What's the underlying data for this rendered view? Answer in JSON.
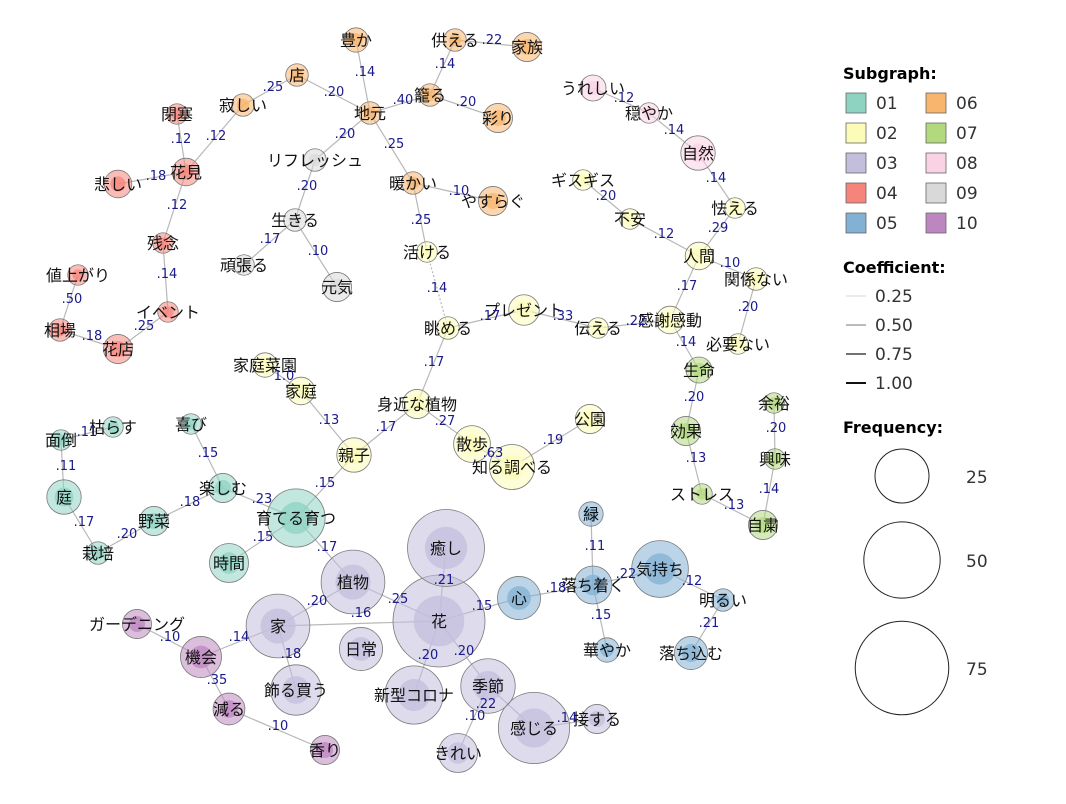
{
  "colors": {
    "01": "#8ed3c2",
    "02": "#fcfcb8",
    "03": "#c3bedc",
    "04": "#f5857b",
    "05": "#83b1d4",
    "06": "#f8b56d",
    "07": "#b3d97d",
    "08": "#f9d3e4",
    "09": "#d9d9d9",
    "10": "#bd86c0",
    "edge": "#b8b8b8",
    "coef_text": "#1a1a8c"
  },
  "legend": {
    "subgraph_title": "Subgraph:",
    "subgraphs": [
      "01",
      "02",
      "03",
      "04",
      "05",
      "06",
      "07",
      "08",
      "09",
      "10"
    ],
    "coefficient_title": "Coefficient:",
    "coefficients": [
      "0.25",
      "0.50",
      "0.75",
      "1.00"
    ],
    "frequency_title": "Frequency:",
    "frequencies": [
      "25",
      "50",
      "75"
    ]
  },
  "nodes": [
    {
      "id": "yutaka",
      "label": "豊か",
      "g": "06",
      "f": 7
    },
    {
      "id": "sonaeru",
      "label": "供える",
      "g": "06",
      "f": 6
    },
    {
      "id": "kazoku",
      "label": "家族",
      "g": "06",
      "f": 10
    },
    {
      "id": "mise",
      "label": "店",
      "g": "06",
      "f": 6
    },
    {
      "id": "komoru",
      "label": "籠る",
      "g": "06",
      "f": 6
    },
    {
      "id": "irodori",
      "label": "彩り",
      "g": "06",
      "f": 10
    },
    {
      "id": "jimoto",
      "label": "地元",
      "g": "06",
      "f": 6
    },
    {
      "id": "sabishii",
      "label": "寂しい",
      "g": "06",
      "f": 6
    },
    {
      "id": "atatakai",
      "label": "暖かい",
      "g": "06",
      "f": 6
    },
    {
      "id": "yasuragu",
      "label": "やすらぐ",
      "g": "06",
      "f": 10
    },
    {
      "id": "ureshii",
      "label": "うれしい",
      "g": "08",
      "f": 8
    },
    {
      "id": "odayaka",
      "label": "穏やか",
      "g": "08",
      "f": 5
    },
    {
      "id": "shizen",
      "label": "自然",
      "g": "08",
      "f": 14
    },
    {
      "id": "heisa",
      "label": "閉塞",
      "g": "04",
      "f": 5
    },
    {
      "id": "hanami",
      "label": "花見",
      "g": "04",
      "f": 9
    },
    {
      "id": "kanashii",
      "label": "悲しい",
      "g": "04",
      "f": 9
    },
    {
      "id": "zannen",
      "label": "残念",
      "g": "04",
      "f": 5
    },
    {
      "id": "neagari",
      "label": "値上がり",
      "g": "04",
      "f": 5
    },
    {
      "id": "event",
      "label": "イベント",
      "g": "04",
      "f": 5
    },
    {
      "id": "souba",
      "label": "相場",
      "g": "04",
      "f": 6
    },
    {
      "id": "katen",
      "label": "花店",
      "g": "04",
      "f": 10
    },
    {
      "id": "refresh",
      "label": "リフレッシュ",
      "g": "09",
      "f": 6
    },
    {
      "id": "ikiru",
      "label": "生きる",
      "g": "09",
      "f": 6
    },
    {
      "id": "ganbaru",
      "label": "頑張る",
      "g": "09",
      "f": 5
    },
    {
      "id": "genki",
      "label": "元気",
      "g": "09",
      "f": 10
    },
    {
      "id": "kasseru",
      "label": "活ける",
      "g": "02",
      "f": 5
    },
    {
      "id": "gizagiza",
      "label": "ギスギス",
      "g": "02",
      "f": 5
    },
    {
      "id": "fuan",
      "label": "不安",
      "g": "02",
      "f": 5
    },
    {
      "id": "obieru",
      "label": "怯える",
      "g": "02",
      "f": 5
    },
    {
      "id": "ningen",
      "label": "人間",
      "g": "02",
      "f": 9
    },
    {
      "id": "kankeinai",
      "label": "関係ない",
      "g": "02",
      "f": 6
    },
    {
      "id": "present",
      "label": "プレゼント",
      "g": "02",
      "f": 11
    },
    {
      "id": "nagameru",
      "label": "眺める",
      "g": "02",
      "f": 6
    },
    {
      "id": "tsutaeru",
      "label": "伝える",
      "g": "02",
      "f": 5
    },
    {
      "id": "kansha",
      "label": "感謝感動",
      "g": "02",
      "f": 9
    },
    {
      "id": "hitsuyou",
      "label": "必要ない",
      "g": "02",
      "f": 5
    },
    {
      "id": "saien",
      "label": "家庭菜園",
      "g": "02",
      "f": 7
    },
    {
      "id": "katei",
      "label": "家庭",
      "g": "02",
      "f": 9
    },
    {
      "id": "midika",
      "label": "身近な植物",
      "g": "02",
      "f": 10
    },
    {
      "id": "kouen",
      "label": "公園",
      "g": "02",
      "f": 10
    },
    {
      "id": "oyako",
      "label": "親子",
      "g": "02",
      "f": 14
    },
    {
      "id": "sanpo",
      "label": "散歩",
      "g": "02",
      "f": 16
    },
    {
      "id": "shiraberu",
      "label": "知る調べる",
      "g": "02",
      "f": 24
    },
    {
      "id": "seimei",
      "label": "生命",
      "g": "07",
      "f": 8
    },
    {
      "id": "yoyuu",
      "label": "余裕",
      "g": "07",
      "f": 5
    },
    {
      "id": "kouka",
      "label": "効果",
      "g": "07",
      "f": 10
    },
    {
      "id": "kyoumi",
      "label": "興味",
      "g": "07",
      "f": 5
    },
    {
      "id": "stress",
      "label": "ストレス",
      "g": "07",
      "f": 5
    },
    {
      "id": "jishuku",
      "label": "自粛",
      "g": "07",
      "f": 10
    },
    {
      "id": "karasu",
      "label": "枯らす",
      "g": "01",
      "f": 5
    },
    {
      "id": "yorokobi",
      "label": "喜び",
      "g": "01",
      "f": 5
    },
    {
      "id": "mendou",
      "label": "面倒",
      "g": "01",
      "f": 5
    },
    {
      "id": "niwa",
      "label": "庭",
      "g": "01",
      "f": 14
    },
    {
      "id": "tanoshimu",
      "label": "楽しむ",
      "g": "01",
      "f": 10
    },
    {
      "id": "sodateru",
      "label": "育てる育つ",
      "g": "01",
      "f": 40
    },
    {
      "id": "yasai",
      "label": "野菜",
      "g": "01",
      "f": 10
    },
    {
      "id": "saibai",
      "label": "栽培",
      "g": "01",
      "f": 6
    },
    {
      "id": "jikan",
      "label": "時間",
      "g": "01",
      "f": 18
    },
    {
      "id": "midori",
      "label": "緑",
      "g": "05",
      "f": 7
    },
    {
      "id": "iyashi",
      "label": "癒し",
      "g": "03",
      "f": 70
    },
    {
      "id": "shokubutsu",
      "label": "植物",
      "g": "03",
      "f": 48
    },
    {
      "id": "kimochi",
      "label": "気持ち",
      "g": "05",
      "f": 38
    },
    {
      "id": "kokoro",
      "label": "心",
      "g": "05",
      "f": 22
    },
    {
      "id": "ochitsuku",
      "label": "落ち着く",
      "g": "05",
      "f": 17
    },
    {
      "id": "akarui",
      "label": "明るい",
      "g": "05",
      "f": 6
    },
    {
      "id": "gardening",
      "label": "ガーデニング",
      "g": "10",
      "f": 10
    },
    {
      "id": "ie",
      "label": "家",
      "g": "03",
      "f": 48
    },
    {
      "id": "nichijou",
      "label": "日常",
      "g": "03",
      "f": 22
    },
    {
      "id": "hana",
      "label": "花",
      "g": "03",
      "f": 100
    },
    {
      "id": "hanayaka",
      "label": "華やか",
      "g": "05",
      "f": 7
    },
    {
      "id": "ochikomu",
      "label": "落ち込む",
      "g": "05",
      "f": 13
    },
    {
      "id": "kikai",
      "label": "機会",
      "g": "10",
      "f": 20
    },
    {
      "id": "kazaru",
      "label": "飾る買う",
      "g": "03",
      "f": 30
    },
    {
      "id": "corona",
      "label": "新型コロナ",
      "g": "03",
      "f": 40
    },
    {
      "id": "kisetsu",
      "label": "季節",
      "g": "03",
      "f": 35
    },
    {
      "id": "herasu",
      "label": "減る",
      "g": "10",
      "f": 12
    },
    {
      "id": "sessuru",
      "label": "接する",
      "g": "03",
      "f": 10
    },
    {
      "id": "kanjiru",
      "label": "感じる",
      "g": "03",
      "f": 60
    },
    {
      "id": "kaori",
      "label": "香り",
      "g": "10",
      "f": 10
    },
    {
      "id": "kirei",
      "label": "きれい",
      "g": "03",
      "f": 18
    }
  ],
  "edges": [
    {
      "a": "yutaka",
      "b": "jimoto",
      "c": ".14"
    },
    {
      "a": "sonaeru",
      "b": "kazoku",
      "c": ".22"
    },
    {
      "a": "sonaeru",
      "b": "komoru",
      "c": ".14"
    },
    {
      "a": "komoru",
      "b": "irodori",
      "c": ".20"
    },
    {
      "a": "komoru",
      "b": "jimoto",
      "c": ".40"
    },
    {
      "a": "mise",
      "b": "jimoto",
      "c": ".20"
    },
    {
      "a": "mise",
      "b": "sabishii",
      "c": ".25"
    },
    {
      "a": "sabishii",
      "b": "hanami",
      "c": ".12"
    },
    {
      "a": "jimoto",
      "b": "refresh",
      "c": ".20"
    },
    {
      "a": "jimoto",
      "b": "atatakai",
      "c": ".25"
    },
    {
      "a": "atatakai",
      "b": "yasuragu",
      "c": ".10"
    },
    {
      "a": "atatakai",
      "b": "kasseru",
      "c": ".25"
    },
    {
      "a": "kasseru",
      "b": "nagameru",
      "c": ".14",
      "dashed": true
    },
    {
      "a": "ureshii",
      "b": "odayaka",
      "c": ".12"
    },
    {
      "a": "odayaka",
      "b": "shizen",
      "c": ".14"
    },
    {
      "a": "shizen",
      "b": "obieru",
      "c": ".14"
    },
    {
      "a": "heisa",
      "b": "hanami",
      "c": ".12"
    },
    {
      "a": "hanami",
      "b": "kanashii",
      "c": ".18"
    },
    {
      "a": "hanami",
      "b": "zannen",
      "c": ".12"
    },
    {
      "a": "zannen",
      "b": "event",
      "c": ".14"
    },
    {
      "a": "event",
      "b": "katen",
      "c": ".25"
    },
    {
      "a": "neagari",
      "b": "souba",
      "c": ".50"
    },
    {
      "a": "souba",
      "b": "katen",
      "c": ".18"
    },
    {
      "a": "refresh",
      "b": "ikiru",
      "c": ".20"
    },
    {
      "a": "ikiru",
      "b": "ganbaru",
      "c": ".17"
    },
    {
      "a": "ikiru",
      "b": "genki",
      "c": ".10"
    },
    {
      "a": "gizagiza",
      "b": "fuan",
      "c": ".20"
    },
    {
      "a": "fuan",
      "b": "ningen",
      "c": ".12"
    },
    {
      "a": "obieru",
      "b": "ningen",
      "c": ".29"
    },
    {
      "a": "ningen",
      "b": "kankeinai",
      "c": ".10"
    },
    {
      "a": "ningen",
      "b": "kansha",
      "c": ".17"
    },
    {
      "a": "kankeinai",
      "b": "hitsuyou",
      "c": ".20"
    },
    {
      "a": "present",
      "b": "nagameru",
      "c": ".17"
    },
    {
      "a": "present",
      "b": "tsutaeru",
      "c": ".33"
    },
    {
      "a": "tsutaeru",
      "b": "kansha",
      "c": ".22"
    },
    {
      "a": "kansha",
      "b": "seimei",
      "c": ".14"
    },
    {
      "a": "nagameru",
      "b": "midika",
      "c": ".17"
    },
    {
      "a": "saien",
      "b": "katei",
      "c": "1.0"
    },
    {
      "a": "katei",
      "b": "oyako",
      "c": ".13"
    },
    {
      "a": "midika",
      "b": "oyako",
      "c": ".17"
    },
    {
      "a": "midika",
      "b": "sanpo",
      "c": ".27"
    },
    {
      "a": "sanpo",
      "b": "shiraberu",
      "c": ".63"
    },
    {
      "a": "kouen",
      "b": "shiraberu",
      "c": ".19"
    },
    {
      "a": "oyako",
      "b": "sodateru",
      "c": ".15"
    },
    {
      "a": "seimei",
      "b": "kouka",
      "c": ".20"
    },
    {
      "a": "kouka",
      "b": "stress",
      "c": ".13"
    },
    {
      "a": "stress",
      "b": "jishuku",
      "c": ".13"
    },
    {
      "a": "yoyuu",
      "b": "kyoumi",
      "c": ".20"
    },
    {
      "a": "kyoumi",
      "b": "jishuku",
      "c": ".14"
    },
    {
      "a": "mendou",
      "b": "karasu",
      "c": ".11"
    },
    {
      "a": "mendou",
      "b": "niwa",
      "c": ".11"
    },
    {
      "a": "niwa",
      "b": "saibai",
      "c": ".17"
    },
    {
      "a": "saibai",
      "b": "yasai",
      "c": ".20"
    },
    {
      "a": "yasai",
      "b": "tanoshimu",
      "c": ".18"
    },
    {
      "a": "yorokobi",
      "b": "tanoshimu",
      "c": ".15"
    },
    {
      "a": "tanoshimu",
      "b": "sodateru",
      "c": ".23"
    },
    {
      "a": "sodateru",
      "b": "jikan",
      "c": ".15"
    },
    {
      "a": "sodateru",
      "b": "shokubutsu",
      "c": ".17"
    },
    {
      "a": "shokubutsu",
      "b": "hana",
      "c": ".21"
    },
    {
      "a": "shokubutsu",
      "b": "ie",
      "c": ".20"
    },
    {
      "a": "iyashi",
      "b": "hana",
      "c": ".25"
    },
    {
      "a": "ie",
      "b": "hana",
      "c": ".16"
    },
    {
      "a": "ie",
      "b": "kikai",
      "c": ".14"
    },
    {
      "a": "ie",
      "b": "kazaru",
      "c": ".18"
    },
    {
      "a": "hana",
      "b": "kokoro",
      "c": ".15"
    },
    {
      "a": "hana",
      "b": "corona",
      "c": ".20"
    },
    {
      "a": "hana",
      "b": "kisetsu",
      "c": ".20"
    },
    {
      "a": "kokoro",
      "b": "ochitsuku",
      "c": ".18"
    },
    {
      "a": "midori",
      "b": "ochitsuku",
      "c": ".11"
    },
    {
      "a": "ochitsuku",
      "b": "kimochi",
      "c": ".22"
    },
    {
      "a": "ochitsuku",
      "b": "hanayaka",
      "c": ".15"
    },
    {
      "a": "kimochi",
      "b": "akarui",
      "c": ".12"
    },
    {
      "a": "akarui",
      "b": "ochikomu",
      "c": ".21"
    },
    {
      "a": "gardening",
      "b": "kikai",
      "c": ".10"
    },
    {
      "a": "kikai",
      "b": "herasu",
      "c": ".35"
    },
    {
      "a": "herasu",
      "b": "kaori",
      "c": ".10"
    },
    {
      "a": "kisetsu",
      "b": "kanjiru",
      "c": ".22"
    },
    {
      "a": "kisetsu",
      "b": "kirei",
      "c": ".10"
    },
    {
      "a": "kanjiru",
      "b": "sessuru",
      "c": ".14"
    }
  ]
}
